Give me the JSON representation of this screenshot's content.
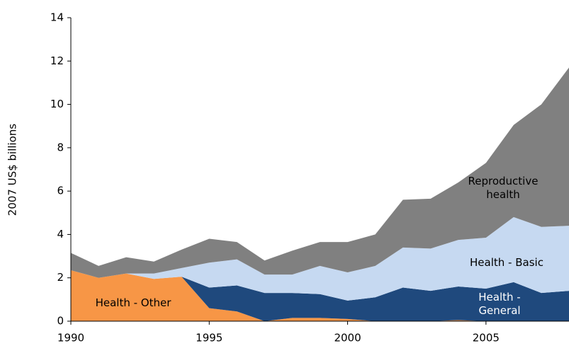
{
  "chart_data": {
    "type": "stacked_area",
    "ylabel": "2007 US$ billions",
    "x": [
      1990,
      1991,
      1992,
      1993,
      1994,
      1995,
      1996,
      1997,
      1998,
      1999,
      2000,
      2001,
      2002,
      2003,
      2004,
      2005,
      2006,
      2007,
      2008
    ],
    "xlim": [
      1990,
      2008
    ],
    "xticks": [
      1990,
      1995,
      2000,
      2005
    ],
    "ylim": [
      0,
      14
    ],
    "yticks": [
      0,
      2,
      4,
      6,
      8,
      10,
      12,
      14
    ],
    "series": [
      {
        "name": "Health - Other",
        "color": "#f79646",
        "values": [
          2.35,
          2.0,
          2.2,
          1.95,
          2.05,
          0.6,
          0.45,
          0,
          0.15,
          0.15,
          0.1,
          0,
          0,
          0,
          0.05,
          0,
          0,
          0,
          0
        ]
      },
      {
        "name": "Health - General",
        "color": "#1f497d",
        "values": [
          0,
          0,
          0,
          0,
          0,
          0.95,
          1.2,
          1.3,
          1.15,
          1.1,
          0.85,
          1.1,
          1.55,
          1.4,
          1.55,
          1.5,
          1.8,
          1.3,
          1.4
        ]
      },
      {
        "name": "Health - Basic",
        "color": "#c6d9f1",
        "values": [
          0,
          0,
          0,
          0.25,
          0.4,
          1.15,
          1.2,
          0.85,
          0.85,
          1.3,
          1.3,
          1.45,
          1.85,
          1.95,
          2.15,
          2.35,
          3.0,
          3.05,
          3.0
        ]
      },
      {
        "name": "Reproductive health",
        "color": "#808080",
        "values": [
          0.8,
          0.55,
          0.75,
          0.55,
          0.85,
          1.1,
          0.8,
          0.65,
          1.1,
          1.1,
          1.4,
          1.45,
          2.2,
          2.3,
          2.65,
          3.45,
          4.25,
          5.65,
          7.3
        ]
      }
    ]
  }
}
